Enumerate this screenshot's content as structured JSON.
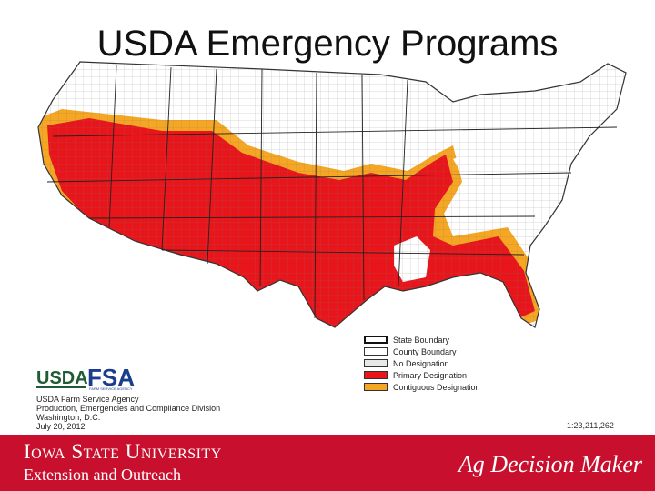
{
  "slide": {
    "title": "USDA Emergency Programs"
  },
  "map": {
    "colors": {
      "primary": "#e8161b",
      "contiguous": "#f5a623",
      "none": "#ffffff",
      "boundary": "#555555"
    }
  },
  "legend": {
    "items": [
      {
        "label": "State Boundary",
        "color": "#ffffff"
      },
      {
        "label": "County Boundary",
        "color": "#ffffff"
      },
      {
        "label": "No Designation",
        "color": "#e8e8e8"
      },
      {
        "label": "Primary Designation",
        "color": "#e8161b"
      },
      {
        "label": "Contiguous Designation",
        "color": "#f5a623"
      }
    ],
    "scale": "1:23,211,262"
  },
  "agency": {
    "logo_text_usda": "USDA",
    "logo_text_fsa": "FSA",
    "logo_subtext": "FARM SERVICE AGENCY",
    "line1": "USDA Farm Service Agency",
    "line2": "Production, Emergencies and Compliance Division",
    "line3": "Washington, D.C.",
    "line4": "July 20, 2012"
  },
  "footer": {
    "university": "Iowa State University",
    "extension": "Extension and Outreach",
    "brand": "Ag Decision Maker",
    "bg_color": "#c8102e"
  }
}
